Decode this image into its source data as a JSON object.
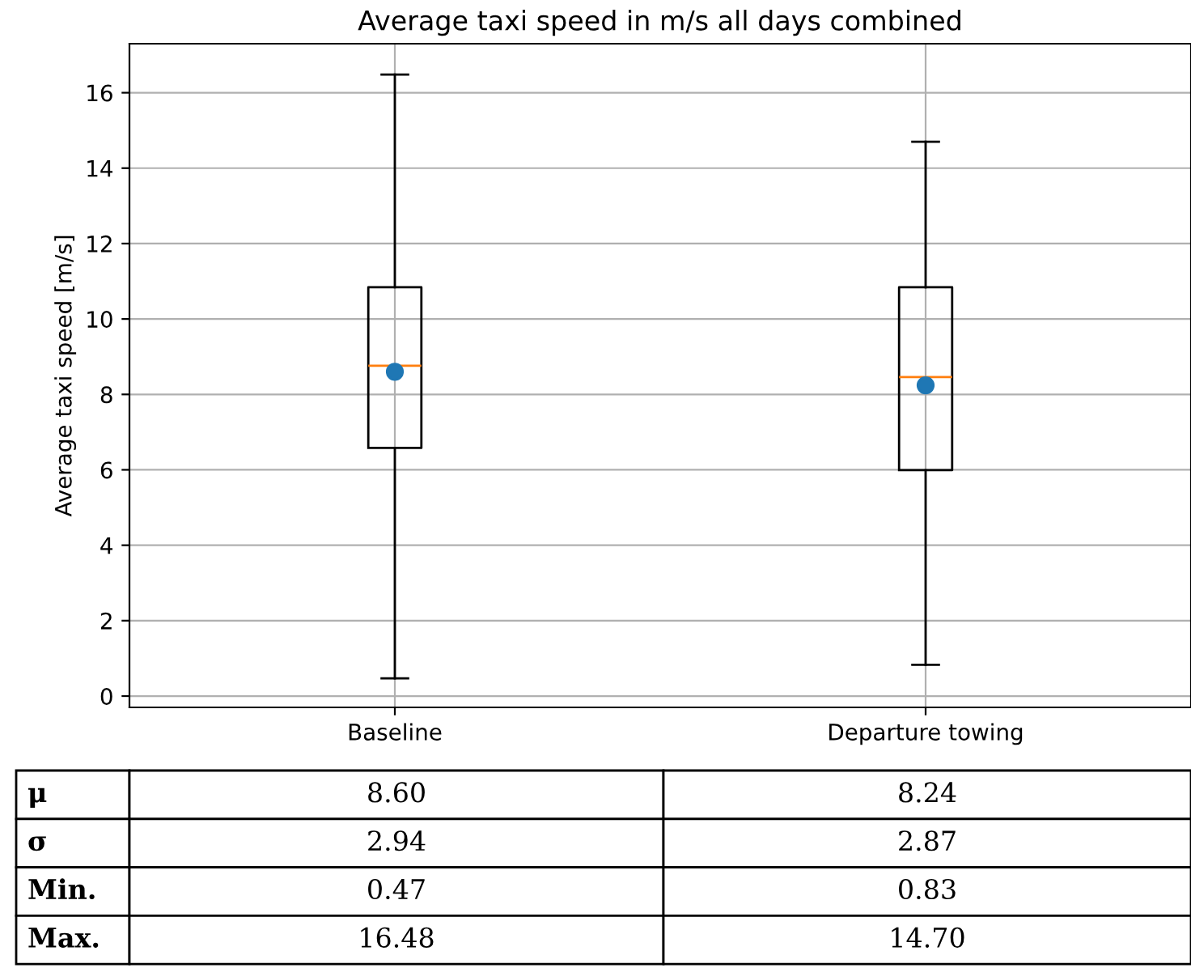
{
  "chart_data": {
    "type": "box",
    "title": "Average taxi speed in m/s all days combined",
    "ylabel": "Average taxi speed [m/s]",
    "categories": [
      "Baseline",
      "Departure towing"
    ],
    "boxes": [
      {
        "low": 0.47,
        "q1": 6.58,
        "median": 8.76,
        "q3": 10.84,
        "high": 16.48,
        "mean": 8.6
      },
      {
        "low": 0.83,
        "q1": 5.99,
        "median": 8.46,
        "q3": 10.84,
        "high": 14.7,
        "mean": 8.24
      }
    ],
    "ylim": [
      -0.3,
      17.3
    ],
    "yticks": [
      0,
      2,
      4,
      6,
      8,
      10,
      12,
      14,
      16
    ],
    "grid": true,
    "annotations": [
      "μ",
      "8.60",
      "8.24",
      "σ",
      "2.94",
      "2.87",
      "Min.",
      "0.47",
      "0.83",
      "Max.",
      "16.48",
      "14.70"
    ]
  }
}
